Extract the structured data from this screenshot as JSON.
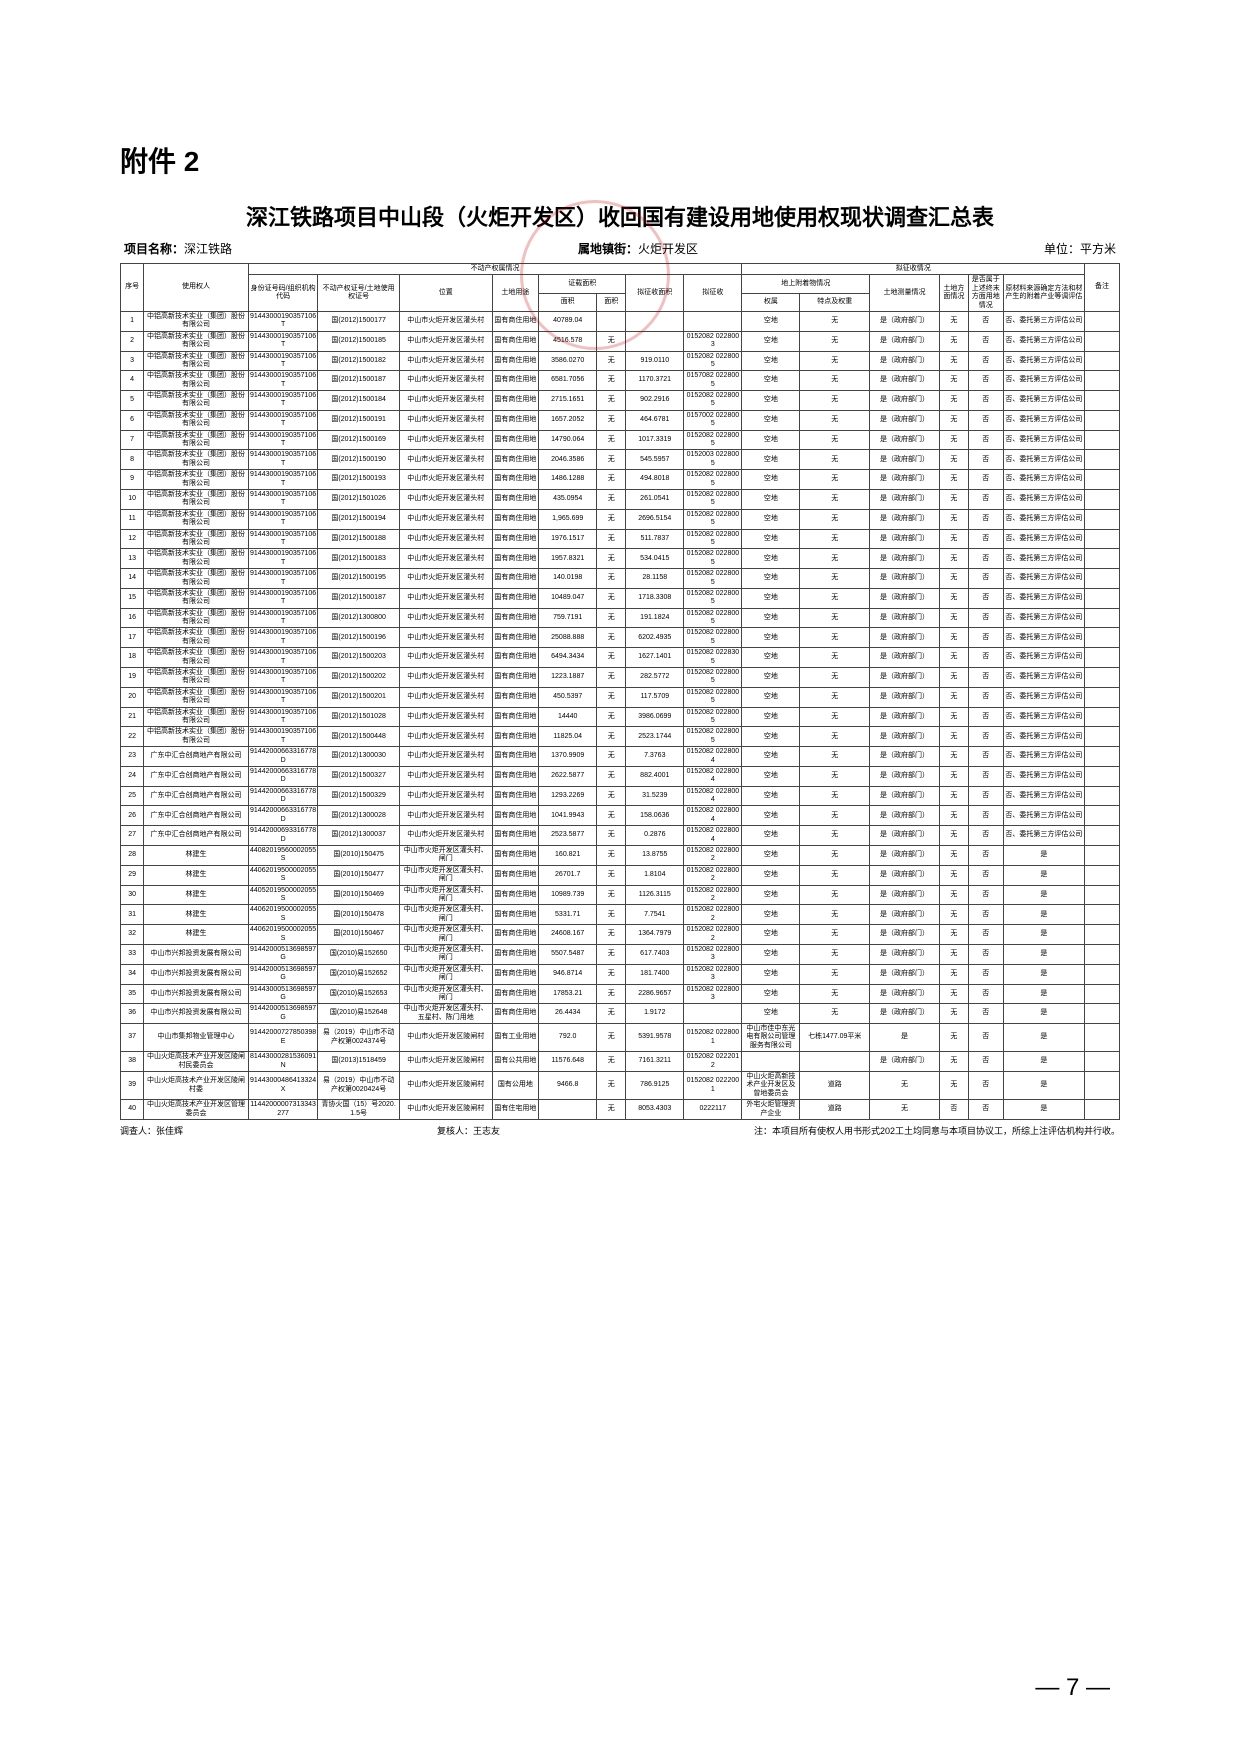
{
  "attachment_label": "附件 2",
  "main_title": "深江铁路项目中山段（火炬开发区）收回国有建设用地使用权现状调查汇总表",
  "subheader": {
    "project_label": "项目名称：",
    "project_value": "深江铁路",
    "town_label": "属地镇街：",
    "town_value": "火炬开发区",
    "unit_label": "单位：平方米"
  },
  "header_groups": {
    "property": "不动产权属情况",
    "expropriation": "拟征收情况"
  },
  "columns": [
    "序号",
    "使用权人",
    "身份证号码/组织机构代码",
    "不动产权证号/土地使用权证号",
    "位置",
    "土地用途",
    "证载面积",
    "证载面积",
    "拟征收面积",
    "拟征收",
    "权属",
    "特点及权重",
    "土地测量情况",
    "土地方面情况",
    "是否属于上述终末方面用地情况",
    "原材料来源确定方法和材产生的附着产业等调评估",
    "备注"
  ],
  "subcols": {
    "area_sub": [
      "面积",
      "面积"
    ]
  },
  "rows": [
    {
      "n": 1,
      "c2": "中铝高新技术实业（集团）股份有限公司",
      "c3": "91443000190357106T",
      "c4": "国(2012)1500177",
      "c5": "中山市火炬开发区灌头村",
      "c6": "国有商住用地",
      "c7": "40789.04",
      "c8": "",
      "c9": "",
      "c10": "",
      "c11": "空地",
      "c12": "无",
      "c13": "是（政府部门）",
      "c14": "无",
      "c15": "否",
      "c16": "否、委托第三方评估公司",
      "c17": ""
    },
    {
      "n": 2,
      "c2": "中铝高新技术实业（集团）股份有限公司",
      "c3": "91443000190357106T",
      "c4": "国(2012)1500185",
      "c5": "中山市火炬开发区灌头村",
      "c6": "国有商住用地",
      "c7": "4516.578",
      "c8": "无",
      "c9": "",
      "c10": "0152082 0228003",
      "c11": "空地",
      "c12": "无",
      "c13": "是（政府部门）",
      "c14": "无",
      "c15": "否",
      "c16": "否、委托第三方评估公司",
      "c17": ""
    },
    {
      "n": 3,
      "c2": "中铝高新技术实业（集团）股份有限公司",
      "c3": "91443000190357106T",
      "c4": "国(2012)1500182",
      "c5": "中山市火炬开发区灌头村",
      "c6": "国有商住用地",
      "c7": "3586.0270",
      "c8": "无",
      "c9": "919.0110",
      "c10": "0152082 0228005",
      "c11": "空地",
      "c12": "无",
      "c13": "是（政府部门）",
      "c14": "无",
      "c15": "否",
      "c16": "否、委托第三方评估公司",
      "c17": ""
    },
    {
      "n": 4,
      "c2": "中铝高新技术实业（集团）股份有限公司",
      "c3": "91443000190357106T",
      "c4": "国(2012)1500187",
      "c5": "中山市火炬开发区灌头村",
      "c6": "国有商住用地",
      "c7": "6581.7056",
      "c8": "无",
      "c9": "1170.3721",
      "c10": "0157082 0228005",
      "c11": "空地",
      "c12": "无",
      "c13": "是（政府部门）",
      "c14": "无",
      "c15": "否",
      "c16": "否、委托第三方评估公司",
      "c17": ""
    },
    {
      "n": 5,
      "c2": "中铝高新技术实业（集团）股份有限公司",
      "c3": "91443000190357106T",
      "c4": "国(2012)1500184",
      "c5": "中山市火炬开发区灌头村",
      "c6": "国有商住用地",
      "c7": "2715.1651",
      "c8": "无",
      "c9": "902.2916",
      "c10": "0152082 0228005",
      "c11": "空地",
      "c12": "无",
      "c13": "是（政府部门）",
      "c14": "无",
      "c15": "否",
      "c16": "否、委托第三方评估公司",
      "c17": ""
    },
    {
      "n": 6,
      "c2": "中铝高新技术实业（集团）股份有限公司",
      "c3": "91443000190357106T",
      "c4": "国(2012)1500191",
      "c5": "中山市火炬开发区灌头村",
      "c6": "国有商住用地",
      "c7": "1657.2052",
      "c8": "无",
      "c9": "464.6781",
      "c10": "0157002 0228005",
      "c11": "空地",
      "c12": "无",
      "c13": "是（政府部门）",
      "c14": "无",
      "c15": "否",
      "c16": "否、委托第三方评估公司",
      "c17": ""
    },
    {
      "n": 7,
      "c2": "中铝高新技术实业（集团）股份有限公司",
      "c3": "91443000190357106T",
      "c4": "国(2012)1500169",
      "c5": "中山市火炬开发区灌头村",
      "c6": "国有商住用地",
      "c7": "14790.064",
      "c8": "无",
      "c9": "1017.3319",
      "c10": "0152082 0228005",
      "c11": "空地",
      "c12": "无",
      "c13": "是（政府部门）",
      "c14": "无",
      "c15": "否",
      "c16": "否、委托第三方评估公司",
      "c17": ""
    },
    {
      "n": 8,
      "c2": "中铝高新技术实业（集团）股份有限公司",
      "c3": "91443000190357106T",
      "c4": "国(2012)1500190",
      "c5": "中山市火炬开发区灌头村",
      "c6": "国有商住用地",
      "c7": "2046.3586",
      "c8": "无",
      "c9": "545.5957",
      "c10": "0152003 0228005",
      "c11": "空地",
      "c12": "无",
      "c13": "是（政府部门）",
      "c14": "无",
      "c15": "否",
      "c16": "否、委托第三方评估公司",
      "c17": ""
    },
    {
      "n": 9,
      "c2": "中铝高新技术实业（集团）股份有限公司",
      "c3": "91443000190357106T",
      "c4": "国(2012)1500193",
      "c5": "中山市火炬开发区灌头村",
      "c6": "国有商住用地",
      "c7": "1486.1288",
      "c8": "无",
      "c9": "494.8018",
      "c10": "0152082 0228005",
      "c11": "空地",
      "c12": "无",
      "c13": "是（政府部门）",
      "c14": "无",
      "c15": "否",
      "c16": "否、委托第三方评估公司",
      "c17": ""
    },
    {
      "n": 10,
      "c2": "中铝高新技术实业（集团）股份有限公司",
      "c3": "91443000190357106T",
      "c4": "国(2012)1501026",
      "c5": "中山市火炬开发区灌头村",
      "c6": "国有商住用地",
      "c7": "435.0954",
      "c8": "无",
      "c9": "261.0541",
      "c10": "0152082 0228005",
      "c11": "空地",
      "c12": "无",
      "c13": "是（政府部门）",
      "c14": "无",
      "c15": "否",
      "c16": "否、委托第三方评估公司",
      "c17": ""
    },
    {
      "n": 11,
      "c2": "中铝高新技术实业（集团）股份有限公司",
      "c3": "91443000190357106T",
      "c4": "国(2012)1500194",
      "c5": "中山市火炬开发区灌头村",
      "c6": "国有商住用地",
      "c7": "1,965.699",
      "c8": "无",
      "c9": "2696.5154",
      "c10": "0152082 0228005",
      "c11": "空地",
      "c12": "无",
      "c13": "是（政府部门）",
      "c14": "无",
      "c15": "否",
      "c16": "否、委托第三方评估公司",
      "c17": ""
    },
    {
      "n": 12,
      "c2": "中铝高新技术实业（集团）股份有限公司",
      "c3": "91443000190357106T",
      "c4": "国(2012)1500188",
      "c5": "中山市火炬开发区灌头村",
      "c6": "国有商住用地",
      "c7": "1976.1517",
      "c8": "无",
      "c9": "511.7837",
      "c10": "0152082 0228005",
      "c11": "空地",
      "c12": "无",
      "c13": "是（政府部门）",
      "c14": "无",
      "c15": "否",
      "c16": "否、委托第三方评估公司",
      "c17": ""
    },
    {
      "n": 13,
      "c2": "中铝高新技术实业（集团）股份有限公司",
      "c3": "91443000190357106T",
      "c4": "国(2012)1500183",
      "c5": "中山市火炬开发区灌头村",
      "c6": "国有商住用地",
      "c7": "1957.8321",
      "c8": "无",
      "c9": "534.0415",
      "c10": "0152082 0228005",
      "c11": "空地",
      "c12": "无",
      "c13": "是（政府部门）",
      "c14": "无",
      "c15": "否",
      "c16": "否、委托第三方评估公司",
      "c17": ""
    },
    {
      "n": 14,
      "c2": "中铝高新技术实业（集团）股份有限公司",
      "c3": "91443000190357106T",
      "c4": "国(2012)1500195",
      "c5": "中山市火炬开发区灌头村",
      "c6": "国有商住用地",
      "c7": "140.0198",
      "c8": "无",
      "c9": "28.1158",
      "c10": "0152082 0228005",
      "c11": "空地",
      "c12": "无",
      "c13": "是（政府部门）",
      "c14": "无",
      "c15": "否",
      "c16": "否、委托第三方评估公司",
      "c17": ""
    },
    {
      "n": 15,
      "c2": "中铝高新技术实业（集团）股份有限公司",
      "c3": "91443000190357106T",
      "c4": "国(2012)1500187",
      "c5": "中山市火炬开发区灌头村",
      "c6": "国有商住用地",
      "c7": "10489.047",
      "c8": "无",
      "c9": "1718.3308",
      "c10": "0152082 0228005",
      "c11": "空地",
      "c12": "无",
      "c13": "是（政府部门）",
      "c14": "无",
      "c15": "否",
      "c16": "否、委托第三方评估公司",
      "c17": ""
    },
    {
      "n": 16,
      "c2": "中铝高新技术实业（集团）股份有限公司",
      "c3": "91443000190357106T",
      "c4": "国(2012)1300800",
      "c5": "中山市火炬开发区灌头村",
      "c6": "国有商住用地",
      "c7": "759.7191",
      "c8": "无",
      "c9": "191.1824",
      "c10": "0152082 0228005",
      "c11": "空地",
      "c12": "无",
      "c13": "是（政府部门）",
      "c14": "无",
      "c15": "否",
      "c16": "否、委托第三方评估公司",
      "c17": ""
    },
    {
      "n": 17,
      "c2": "中铝高新技术实业（集团）股份有限公司",
      "c3": "91443000190357106T",
      "c4": "国(2012)1500196",
      "c5": "中山市火炬开发区灌头村",
      "c6": "国有商住用地",
      "c7": "25088.888",
      "c8": "无",
      "c9": "6202.4935",
      "c10": "0152082 0228005",
      "c11": "空地",
      "c12": "无",
      "c13": "是（政府部门）",
      "c14": "无",
      "c15": "否",
      "c16": "否、委托第三方评估公司",
      "c17": ""
    },
    {
      "n": 18,
      "c2": "中铝高新技术实业（集团）股份有限公司",
      "c3": "91443000190357106T",
      "c4": "国(2012)1500203",
      "c5": "中山市火炬开发区灌头村",
      "c6": "国有商住用地",
      "c7": "6494.3434",
      "c8": "无",
      "c9": "1627.1401",
      "c10": "0152082 0228305",
      "c11": "空地",
      "c12": "无",
      "c13": "是（政府部门）",
      "c14": "无",
      "c15": "否",
      "c16": "否、委托第三方评估公司",
      "c17": ""
    },
    {
      "n": 19,
      "c2": "中铝高新技术实业（集团）股份有限公司",
      "c3": "91443000190357106T",
      "c4": "国(2012)1500202",
      "c5": "中山市火炬开发区灌头村",
      "c6": "国有商住用地",
      "c7": "1223.1887",
      "c8": "无",
      "c9": "282.5772",
      "c10": "0152082 0228005",
      "c11": "空地",
      "c12": "无",
      "c13": "是（政府部门）",
      "c14": "无",
      "c15": "否",
      "c16": "否、委托第三方评估公司",
      "c17": ""
    },
    {
      "n": 20,
      "c2": "中铝高新技术实业（集团）股份有限公司",
      "c3": "91443000190357106T",
      "c4": "国(2012)1500201",
      "c5": "中山市火炬开发区灌头村",
      "c6": "国有商住用地",
      "c7": "450.5397",
      "c8": "无",
      "c9": "117.5709",
      "c10": "0152082 0228005",
      "c11": "空地",
      "c12": "无",
      "c13": "是（政府部门）",
      "c14": "无",
      "c15": "否",
      "c16": "否、委托第三方评估公司",
      "c17": ""
    },
    {
      "n": 21,
      "c2": "中铝高新技术实业（集团）股份有限公司",
      "c3": "91443000190357106T",
      "c4": "国(2012)1501028",
      "c5": "中山市火炬开发区灌头村",
      "c6": "国有商住用地",
      "c7": "14440",
      "c8": "无",
      "c9": "3986.0699",
      "c10": "0152082 0228005",
      "c11": "空地",
      "c12": "无",
      "c13": "是（政府部门）",
      "c14": "无",
      "c15": "否",
      "c16": "否、委托第三方评估公司",
      "c17": ""
    },
    {
      "n": 22,
      "c2": "中铝高新技术实业（集团）股份有限公司",
      "c3": "91443000190357106T",
      "c4": "国(2012)1500448",
      "c5": "中山市火炬开发区灌头村",
      "c6": "国有商住用地",
      "c7": "11825.04",
      "c8": "无",
      "c9": "2523.1744",
      "c10": "0152082 0228005",
      "c11": "空地",
      "c12": "无",
      "c13": "是（政府部门）",
      "c14": "无",
      "c15": "否",
      "c16": "否、委托第三方评估公司",
      "c17": ""
    },
    {
      "n": 23,
      "c2": "广东中汇合创商地产有限公司",
      "c3": "91442000663316778D",
      "c4": "国(2012)1300030",
      "c5": "中山市火炬开发区灌头村",
      "c6": "国有商住用地",
      "c7": "1370.9909",
      "c8": "无",
      "c9": "7.3763",
      "c10": "0152082 0228004",
      "c11": "空地",
      "c12": "无",
      "c13": "是（政府部门）",
      "c14": "无",
      "c15": "否",
      "c16": "否、委托第三方评估公司",
      "c17": ""
    },
    {
      "n": 24,
      "c2": "广东中汇合创商地产有限公司",
      "c3": "91442000663316778D",
      "c4": "国(2012)1500327",
      "c5": "中山市火炬开发区灌头村",
      "c6": "国有商住用地",
      "c7": "2622.5877",
      "c8": "无",
      "c9": "882.4001",
      "c10": "0152082 0228004",
      "c11": "空地",
      "c12": "无",
      "c13": "是（政府部门）",
      "c14": "无",
      "c15": "否",
      "c16": "否、委托第三方评估公司",
      "c17": ""
    },
    {
      "n": 25,
      "c2": "广东中汇合创商地产有限公司",
      "c3": "91442000663316778D",
      "c4": "国(2012)1500329",
      "c5": "中山市火炬开发区灌头村",
      "c6": "国有商住用地",
      "c7": "1293.2269",
      "c8": "无",
      "c9": "31.5239",
      "c10": "0152082 0228004",
      "c11": "空地",
      "c12": "无",
      "c13": "是（政府部门）",
      "c14": "无",
      "c15": "否",
      "c16": "否、委托第三方评估公司",
      "c17": ""
    },
    {
      "n": 26,
      "c2": "广东中汇合创商地产有限公司",
      "c3": "91442000663316778D",
      "c4": "国(2012)1300028",
      "c5": "中山市火炬开发区灌头村",
      "c6": "国有商住用地",
      "c7": "1041.9943",
      "c8": "无",
      "c9": "158.0636",
      "c10": "0152082 0228004",
      "c11": "空地",
      "c12": "无",
      "c13": "是（政府部门）",
      "c14": "无",
      "c15": "否",
      "c16": "否、委托第三方评估公司",
      "c17": ""
    },
    {
      "n": 27,
      "c2": "广东中汇合创商地产有限公司",
      "c3": "91442000693316778D",
      "c4": "国(2012)1300037",
      "c5": "中山市火炬开发区灌头村",
      "c6": "国有商住用地",
      "c7": "2523.5877",
      "c8": "无",
      "c9": "0.2876",
      "c10": "0152082 0228004",
      "c11": "空地",
      "c12": "无",
      "c13": "是（政府部门）",
      "c14": "无",
      "c15": "否",
      "c16": "否、委托第三方评估公司",
      "c17": ""
    },
    {
      "n": 28,
      "c2": "林建生",
      "c3": "44082019560002055S",
      "c4": "国(2010)150475",
      "c5": "中山市火炬开发区灌头村、闸门",
      "c6": "国有商住用地",
      "c7": "160.821",
      "c8": "无",
      "c9": "13.8755",
      "c10": "0152082 0228002",
      "c11": "空地",
      "c12": "无",
      "c13": "是（政府部门）",
      "c14": "无",
      "c15": "否",
      "c16": "是",
      "c17": ""
    },
    {
      "n": 29,
      "c2": "林建生",
      "c3": "44062019500002055S",
      "c4": "国(2010)150477",
      "c5": "中山市火炬开发区灌头村、闸门",
      "c6": "国有商住用地",
      "c7": "26701.7",
      "c8": "无",
      "c9": "1.8104",
      "c10": "0152082 0228002",
      "c11": "空地",
      "c12": "无",
      "c13": "是（政府部门）",
      "c14": "无",
      "c15": "否",
      "c16": "是",
      "c17": ""
    },
    {
      "n": 30,
      "c2": "林建生",
      "c3": "44052019500002055S",
      "c4": "国(2010)150469",
      "c5": "中山市火炬开发区灌头村、闸门",
      "c6": "国有商住用地",
      "c7": "10989.739",
      "c8": "无",
      "c9": "1126.3115",
      "c10": "0152082 0228002",
      "c11": "空地",
      "c12": "无",
      "c13": "是（政府部门）",
      "c14": "无",
      "c15": "否",
      "c16": "是",
      "c17": ""
    },
    {
      "n": 31,
      "c2": "林建生",
      "c3": "44062019500002055S",
      "c4": "国(2010)150478",
      "c5": "中山市火炬开发区灌头村、闸门",
      "c6": "国有商住用地",
      "c7": "5331.71",
      "c8": "无",
      "c9": "7.7541",
      "c10": "0152082 0228002",
      "c11": "空地",
      "c12": "无",
      "c13": "是（政府部门）",
      "c14": "无",
      "c15": "否",
      "c16": "是",
      "c17": ""
    },
    {
      "n": 32,
      "c2": "林建生",
      "c3": "44062019500002055S",
      "c4": "国(2010)150467",
      "c5": "中山市火炬开发区灌头村、闸门",
      "c6": "国有商住用地",
      "c7": "24608.167",
      "c8": "无",
      "c9": "1364.7979",
      "c10": "0152082 0228002",
      "c11": "空地",
      "c12": "无",
      "c13": "是（政府部门）",
      "c14": "无",
      "c15": "否",
      "c16": "是",
      "c17": ""
    },
    {
      "n": 33,
      "c2": "中山市兴邦投资发展有限公司",
      "c3": "91442000513698597G",
      "c4": "国(2010)易152650",
      "c5": "中山市火炬开发区灌头村、闸门",
      "c6": "国有商住用地",
      "c7": "5507.5487",
      "c8": "无",
      "c9": "617.7403",
      "c10": "0152082 0228003",
      "c11": "空地",
      "c12": "无",
      "c13": "是（政府部门）",
      "c14": "无",
      "c15": "否",
      "c16": "是",
      "c17": ""
    },
    {
      "n": 34,
      "c2": "中山市兴邦投资发展有限公司",
      "c3": "91442000513698597G",
      "c4": "国(2010)易152652",
      "c5": "中山市火炬开发区灌头村、闸门",
      "c6": "国有商住用地",
      "c7": "946.8714",
      "c8": "无",
      "c9": "181.7400",
      "c10": "0152082 0228003",
      "c11": "空地",
      "c12": "无",
      "c13": "是（政府部门）",
      "c14": "无",
      "c15": "否",
      "c16": "是",
      "c17": ""
    },
    {
      "n": 35,
      "c2": "中山市兴邦投资发展有限公司",
      "c3": "91443000513698597G",
      "c4": "国(2010)易152653",
      "c5": "中山市火炬开发区灌头村、闸门",
      "c6": "国有商住用地",
      "c7": "17853.21",
      "c8": "无",
      "c9": "2286.9657",
      "c10": "0152082 0228003",
      "c11": "空地",
      "c12": "无",
      "c13": "是（政府部门）",
      "c14": "无",
      "c15": "否",
      "c16": "是",
      "c17": ""
    },
    {
      "n": 36,
      "c2": "中山市兴邦投资发展有限公司",
      "c3": "91442000513698597G",
      "c4": "国(2010)易152648",
      "c5": "中山市火炬开发区灌头村、五星村、陈门用地",
      "c6": "国有商住用地",
      "c7": "26.4434",
      "c8": "无",
      "c9": "1.9172",
      "c10": "",
      "c11": "空地",
      "c12": "无",
      "c13": "是（政府部门）",
      "c14": "无",
      "c15": "否",
      "c16": "是",
      "c17": ""
    },
    {
      "n": 37,
      "c2": "中山市集邦物业管理中心",
      "c3": "91442000727850398E",
      "c4": "易（2019）中山市不动产权第0024374号",
      "c5": "中山市火炬开发区陵闸村",
      "c6": "国有工业用地",
      "c7": "792.0",
      "c8": "无",
      "c9": "5391.9578",
      "c10": "0152082 0228001",
      "c11": "中山市佳中东光电有限公司管理服务有限公司",
      "c12": "七栋1477.09平米",
      "c13": "是",
      "c14": "无",
      "c15": "否",
      "c16": "是",
      "c17": ""
    },
    {
      "n": 38,
      "c2": "中山火炬高技术产业开发区陵闸村民委员会",
      "c3": "81443000281536091N",
      "c4": "国(2013)1518459",
      "c5": "中山市火炬开发区陵闸村",
      "c6": "国有公共用地",
      "c7": "11576.648",
      "c8": "无",
      "c9": "7161.3211",
      "c10": "0152082 0222012",
      "c11": "",
      "c12": "",
      "c13": "是（政府部门）",
      "c14": "无",
      "c15": "否",
      "c16": "是",
      "c17": ""
    },
    {
      "n": 39,
      "c2": "中山火炬高技术产业开发区陵闸村委",
      "c3": "91443000486413324X",
      "c4": "易（2019）中山市不动产权第0020424号",
      "c5": "中山市火炬开发区陵闸村",
      "c6": "国有公用地",
      "c7": "9466.8",
      "c8": "无",
      "c9": "786.9125",
      "c10": "0152082 0222001",
      "c11": "中山火炬高新技术产业开发区及曾地委员会",
      "c12": "道路",
      "c13": "无",
      "c14": "无",
      "c15": "否",
      "c16": "是",
      "c17": ""
    },
    {
      "n": 40,
      "c2": "中山火炬高技术产业开发区管理委员会",
      "c3": "11442000007313343277",
      "c4": "青协火国（15）号2020.1.5号",
      "c5": "中山市火炬开发区陵闸村",
      "c6": "国有住宅用地",
      "c7": "",
      "c8": "无",
      "c9": "8053.4303",
      "c10": "0222117",
      "c11": "外宅火炬管理资产企业",
      "c12": "道路",
      "c13": "无",
      "c14": "否",
      "c15": "否",
      "c16": "是",
      "c17": ""
    }
  ],
  "footer": {
    "left_label": "调查人：",
    "left_value": "张佳辉",
    "mid_label": "复核人：",
    "mid_value": "王志友",
    "right_label": "注：",
    "right_value": "本项目所有使权人用书形式202工土均同意与本项目协议工，所综上注评估机构并行收。"
  },
  "page_number": "— 7 —"
}
